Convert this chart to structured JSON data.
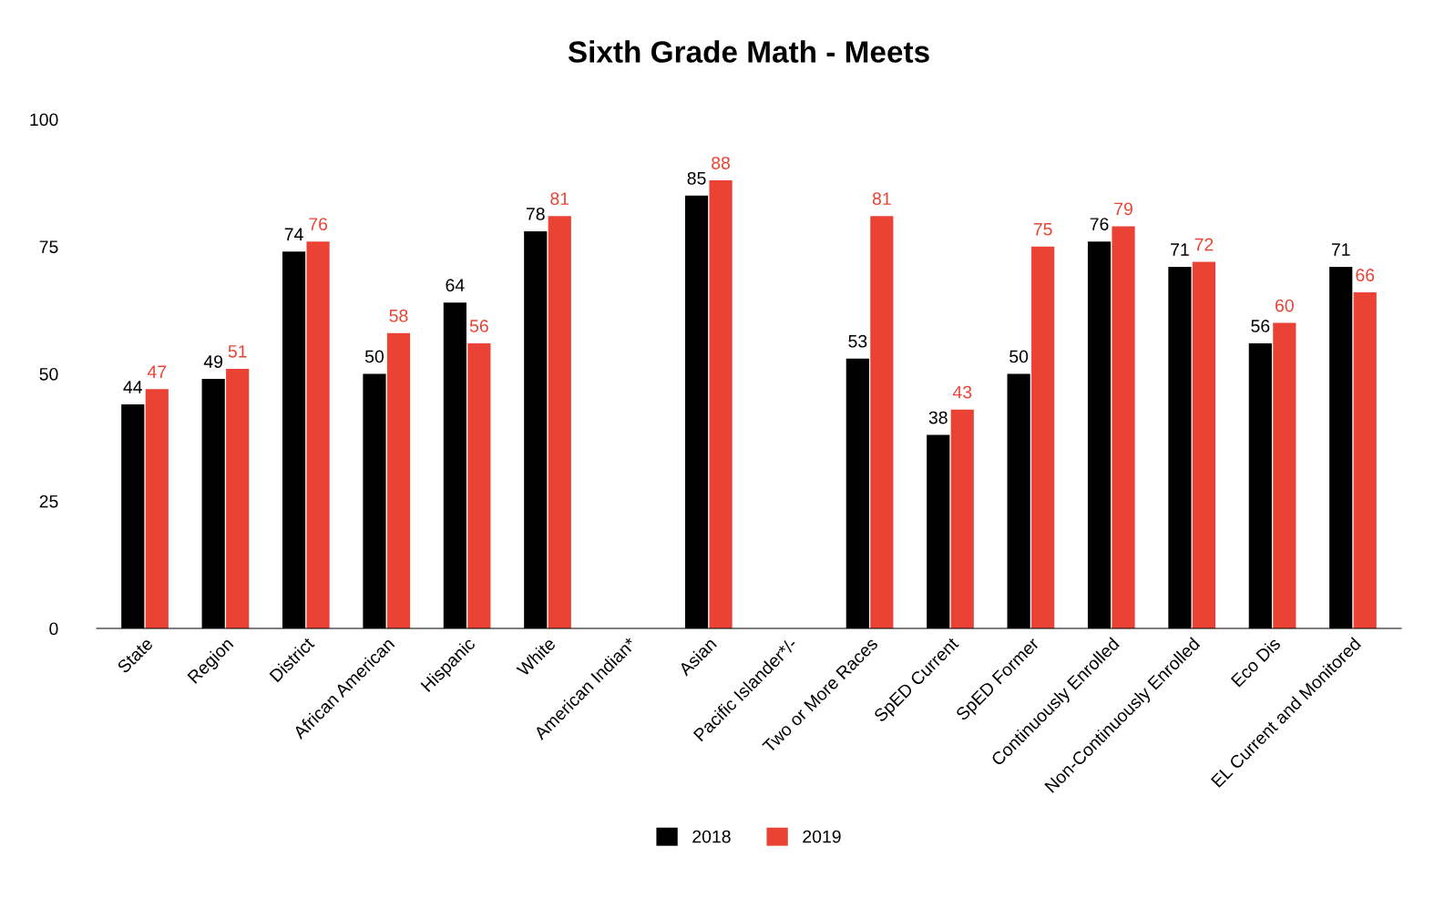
{
  "chart_data": {
    "type": "bar",
    "title": "Sixth Grade Math - Meets",
    "categories": [
      "State",
      "Region",
      "District",
      "African American",
      "Hispanic",
      "White",
      "American Indian*",
      "Asian",
      "Pacific Islander*/-",
      "Two or More Races",
      "SpED Current",
      "SpED Former",
      "Continuously Enrolled",
      "Non-Continuously Enrolled",
      "Eco Dis",
      "EL Current and Monitored"
    ],
    "series": [
      {
        "name": "2018",
        "color": "#000000",
        "values": [
          44,
          49,
          74,
          50,
          64,
          78,
          null,
          85,
          null,
          53,
          38,
          50,
          76,
          71,
          56,
          71
        ]
      },
      {
        "name": "2019",
        "color": "#ea4335",
        "values": [
          47,
          51,
          76,
          58,
          56,
          81,
          null,
          88,
          null,
          81,
          43,
          75,
          79,
          72,
          60,
          66
        ]
      }
    ],
    "ylim": [
      0,
      100
    ],
    "yticks": [
      0,
      25,
      50,
      75,
      100
    ],
    "grid": false,
    "legend": "bottom",
    "data_labels": true
  }
}
